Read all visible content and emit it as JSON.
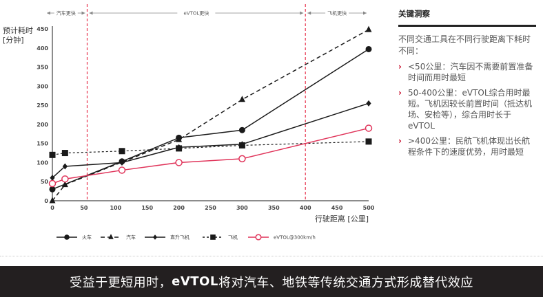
{
  "chart_data": {
    "type": "line",
    "ylabel": "预计耗时\n[分钟]",
    "ylabel_lines": [
      "预计耗时",
      "[分钟]"
    ],
    "xlabel": "行驶距离 [公里]",
    "xlim": [
      0,
      500
    ],
    "ylim": [
      0,
      450
    ],
    "xticks": [
      0,
      50,
      100,
      150,
      200,
      250,
      300,
      350,
      400,
      450,
      500
    ],
    "yticks": [
      0,
      50,
      100,
      150,
      200,
      250,
      300,
      350,
      400,
      450
    ],
    "grid": false,
    "legend_position": "bottom",
    "reference_lines": [
      {
        "x": 55,
        "color": "#e8344e",
        "style": "dashed"
      },
      {
        "x": 400,
        "color": "#e8344e",
        "style": "dashed"
      }
    ],
    "regions": [
      {
        "label": "汽车更快",
        "from": 0,
        "to": 55
      },
      {
        "label": "eVTOL更快",
        "from": 55,
        "to": 400
      },
      {
        "label": "飞机更快",
        "from": 400,
        "to": 500
      }
    ],
    "series": [
      {
        "name": "火车",
        "marker": "circle",
        "line": "solid",
        "color": "#1a1a1a",
        "x": [
          0,
          110,
          200,
          300,
          500
        ],
        "y": [
          30,
          103,
          165,
          185,
          397
        ]
      },
      {
        "name": "汽车",
        "marker": "triangle",
        "line": "dashed",
        "color": "#1a1a1a",
        "x": [
          0,
          20,
          200,
          300,
          500
        ],
        "y": [
          0,
          42,
          160,
          265,
          448
        ]
      },
      {
        "name": "直升飞机",
        "marker": "diamond",
        "line": "solid",
        "color": "#1a1a1a",
        "x": [
          0,
          20,
          110,
          200,
          300,
          500
        ],
        "y": [
          60,
          90,
          100,
          140,
          148,
          255
        ]
      },
      {
        "name": "飞机",
        "marker": "square",
        "line": "dotted",
        "color": "#1a1a1a",
        "x": [
          0,
          20,
          110,
          200,
          300,
          500
        ],
        "y": [
          120,
          125,
          130,
          137,
          145,
          155
        ]
      },
      {
        "name": "eVTOL@300km/h",
        "marker": "open-circle",
        "line": "solid",
        "color": "#e0345a",
        "x": [
          0,
          20,
          110,
          200,
          300,
          500
        ],
        "y": [
          45,
          57,
          80,
          100,
          110,
          190
        ]
      }
    ]
  },
  "insights": {
    "title": "关键洞察",
    "intro": "不同交通工具在不同行驶距离下耗时不同：",
    "bullets": [
      "<50公里：汽车因不需要前置准备时间而用时最短",
      "50-400公里：eVTOL综合用时最短。飞机因较长前置时间（抵达机场、安检等），综合用时长于eVTOL",
      ">400公里：民航飞机体现出长航程条件下的速度优势，用时最短"
    ]
  },
  "footer": {
    "part1": "受益于更短用时，",
    "part2": "eVTOL",
    "part3": "将对汽车、地铁等传统交通方式形成替代效应"
  }
}
